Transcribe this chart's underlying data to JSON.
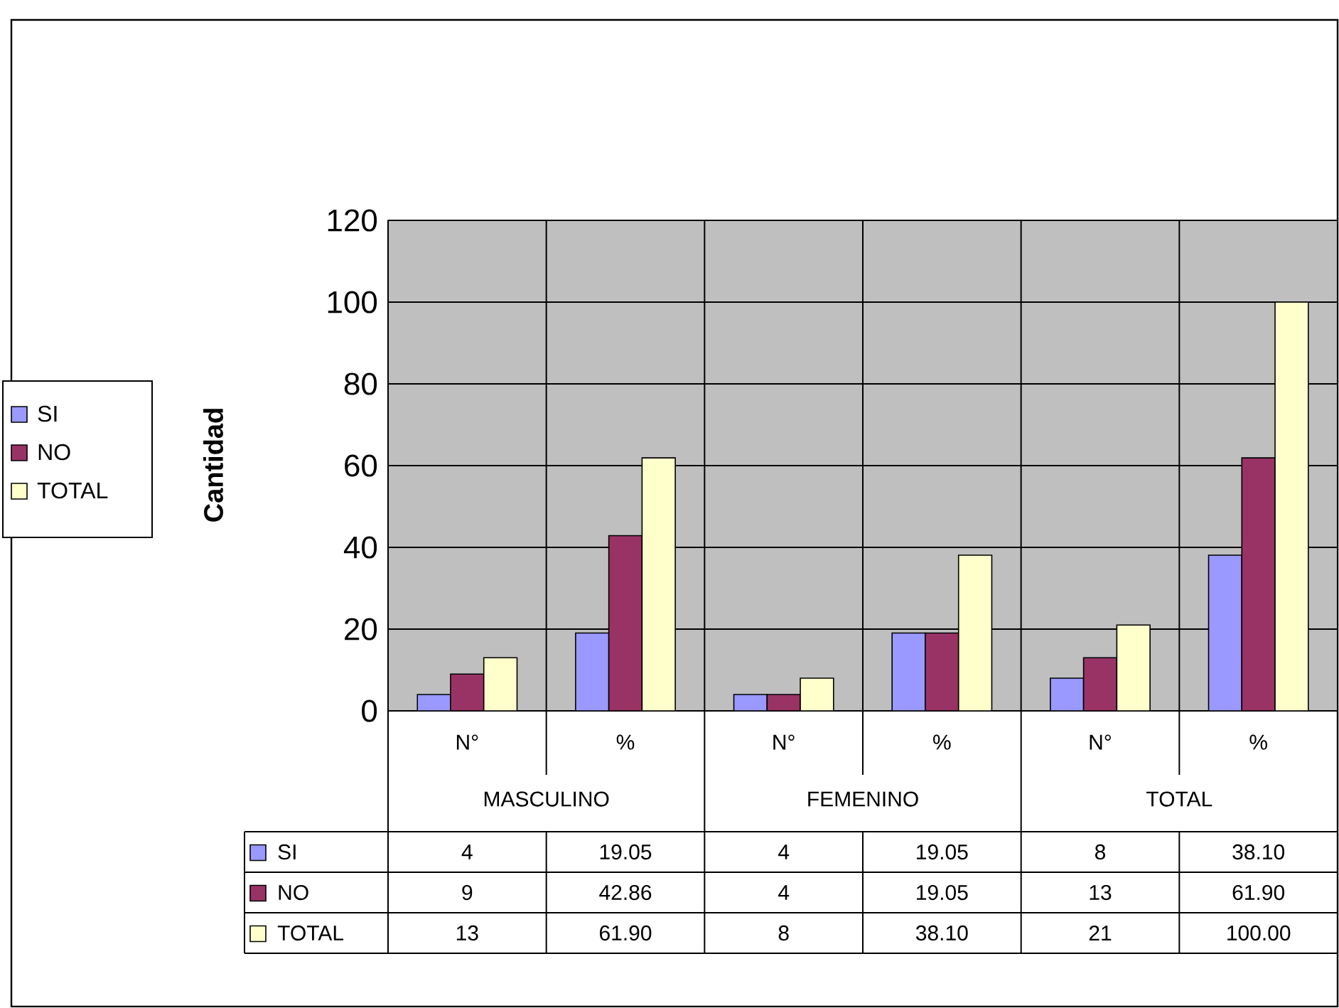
{
  "chart_data": {
    "type": "bar",
    "ylabel": "Cantidad",
    "categories": [
      "N°",
      "%",
      "N°",
      "%",
      "N°",
      "%"
    ],
    "series": [
      {
        "name": "SI",
        "color": "#9999ff",
        "values": [
          4,
          19.05,
          4,
          19.05,
          8,
          38.1
        ],
        "value_labels": [
          "4",
          "19.05",
          "4",
          "19.05",
          "8",
          "38.10"
        ]
      },
      {
        "name": "NO",
        "color": "#993366",
        "values": [
          9,
          42.86,
          4,
          19.05,
          13,
          61.9
        ],
        "value_labels": [
          "9",
          "42.86",
          "4",
          "19.05",
          "13",
          "61.90"
        ]
      },
      {
        "name": "TOTAL",
        "color": "#ffffcc",
        "values": [
          13,
          61.9,
          8,
          38.1,
          21,
          100
        ],
        "value_labels": [
          "13",
          "61.90",
          "8",
          "38.10",
          "21",
          "100.00"
        ]
      }
    ],
    "annotations": [
      "MASCULINO",
      "FEMENINO",
      "TOTAL"
    ],
    "ylim": [
      0,
      120
    ],
    "yticks": [
      0,
      20,
      40,
      60,
      80,
      100,
      120
    ],
    "grid": true,
    "legend": "left"
  }
}
